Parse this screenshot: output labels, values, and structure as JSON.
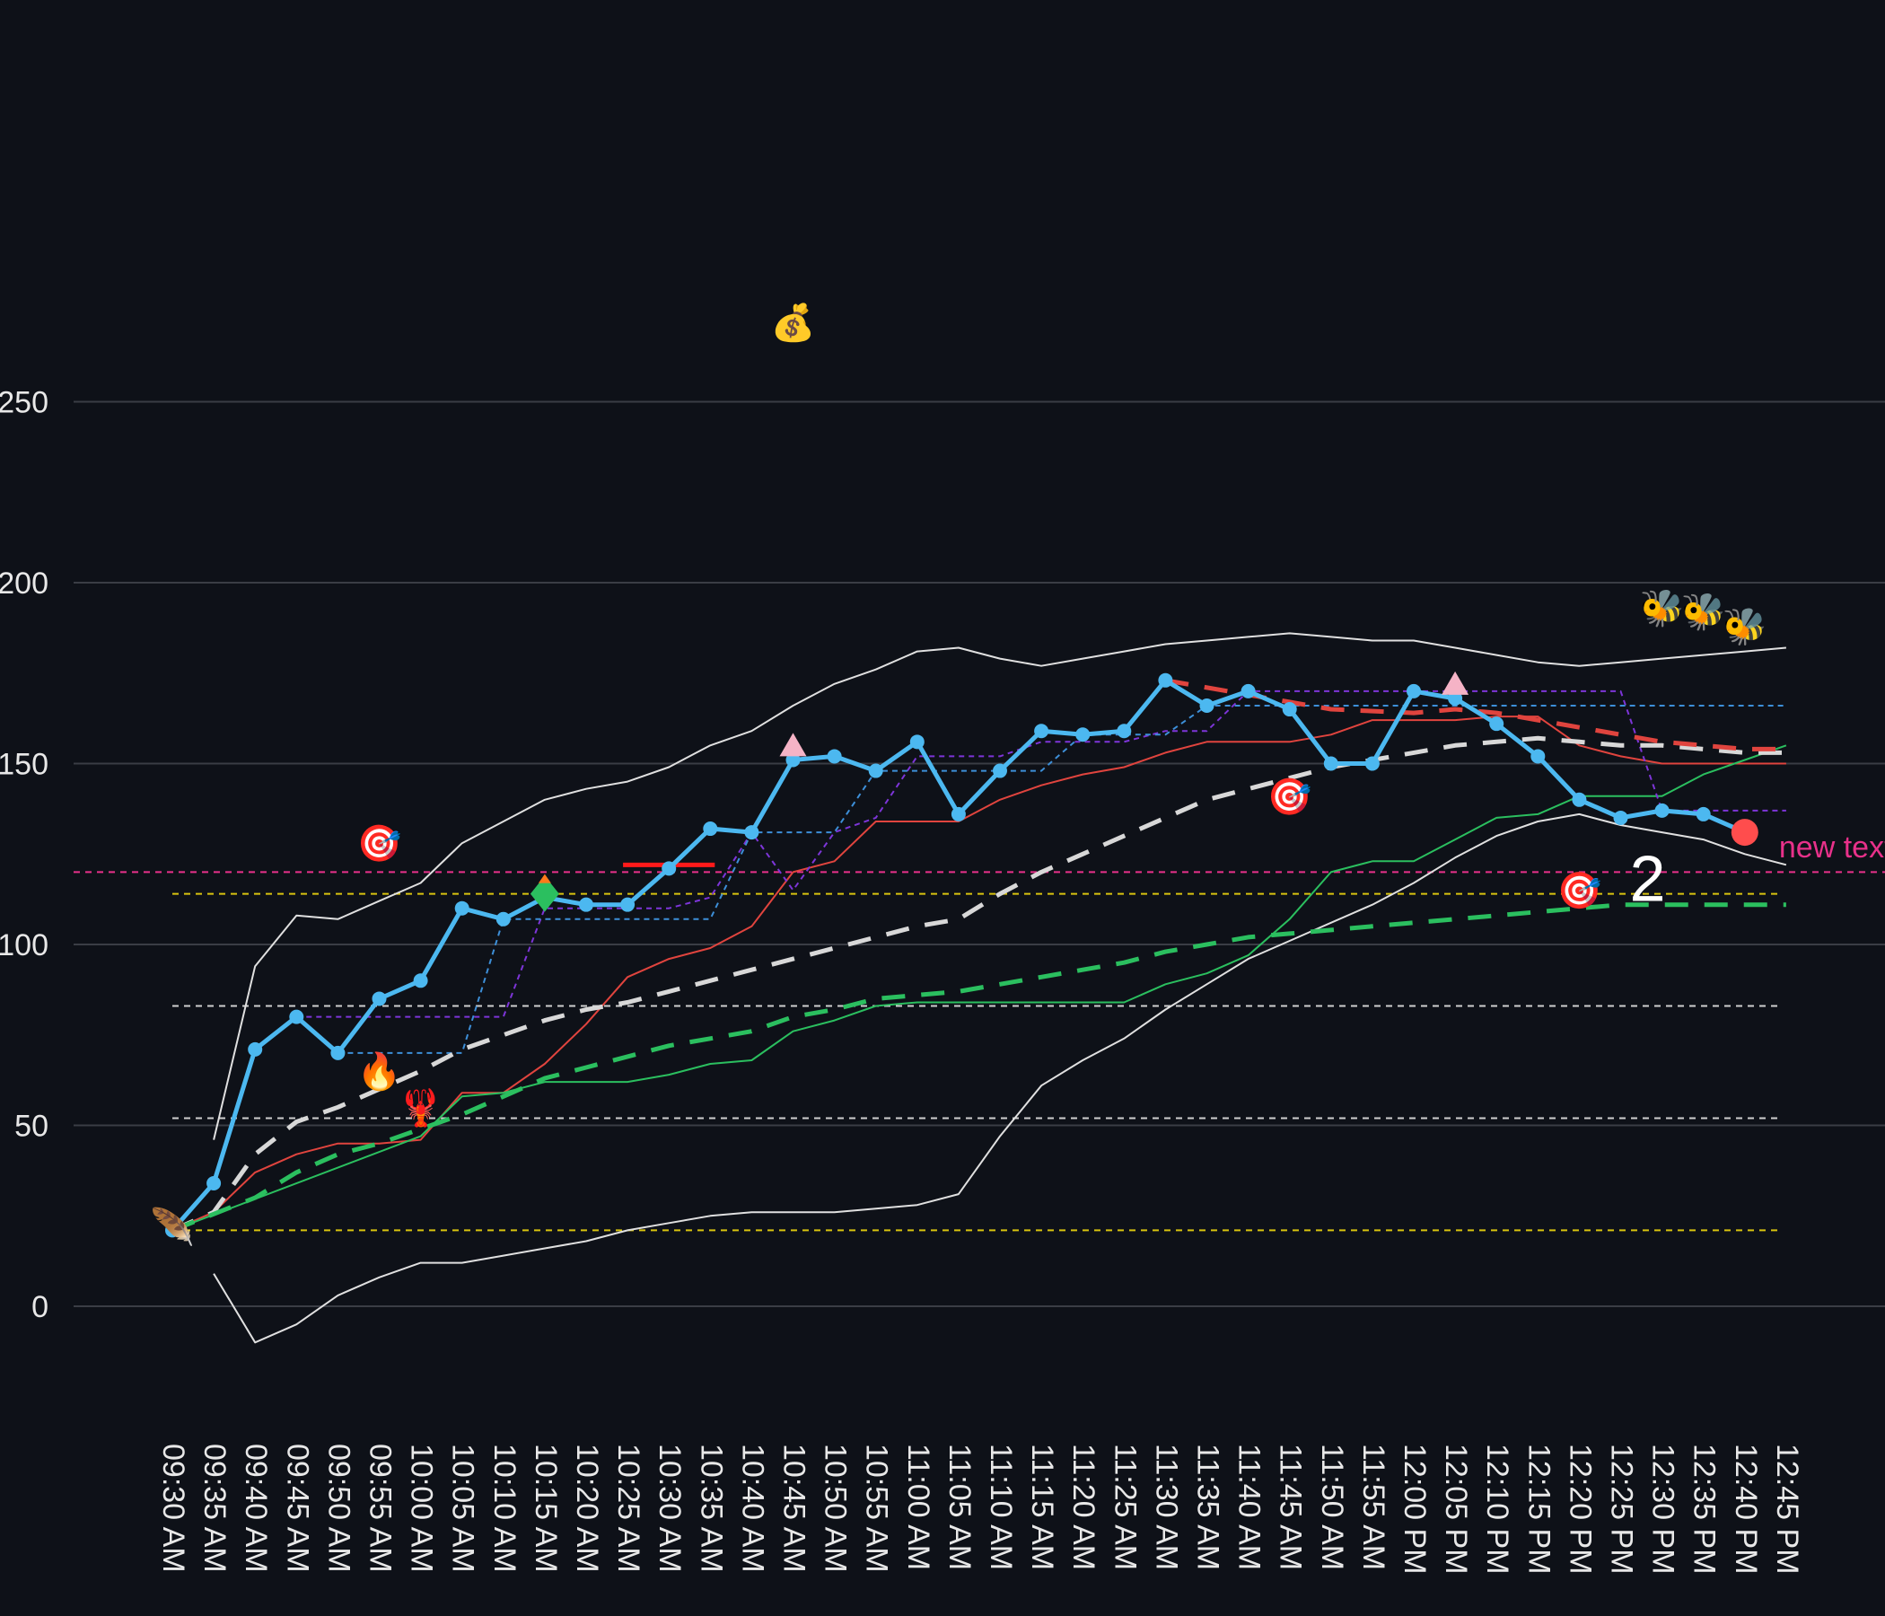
{
  "chart_data": {
    "type": "line",
    "title": "",
    "xlabel": "",
    "ylabel": "",
    "ylim": [
      -35,
      330
    ],
    "grid": true,
    "y_ticks": [
      0,
      50,
      100,
      150,
      200,
      250
    ],
    "categories": [
      "09:30 AM",
      "09:35 AM",
      "09:40 AM",
      "09:45 AM",
      "09:50 AM",
      "09:55 AM",
      "10:00 AM",
      "10:05 AM",
      "10:10 AM",
      "10:15 AM",
      "10:20 AM",
      "10:25 AM",
      "10:30 AM",
      "10:35 AM",
      "10:40 AM",
      "10:45 AM",
      "10:50 AM",
      "10:55 AM",
      "11:00 AM",
      "11:05 AM",
      "11:10 AM",
      "11:15 AM",
      "11:20 AM",
      "11:25 AM",
      "11:30 AM",
      "11:35 AM",
      "11:40 AM",
      "11:45 AM",
      "11:50 AM",
      "11:55 AM",
      "12:00 PM",
      "12:05 PM",
      "12:10 PM",
      "12:15 PM",
      "12:20 PM",
      "12:25 PM",
      "12:30 PM",
      "12:35 PM",
      "12:40 PM",
      "12:45 PM"
    ],
    "series": [
      {
        "key": "price",
        "color": "#4cb8f0",
        "style": "solid-markers",
        "values": [
          21,
          34,
          71,
          80,
          70,
          85,
          90,
          110,
          107,
          113,
          111,
          111,
          121,
          132,
          131,
          151,
          152,
          148,
          156,
          136,
          148,
          159,
          158,
          159,
          173,
          166,
          170,
          165,
          150,
          150,
          170,
          168,
          161,
          152,
          140,
          135,
          137,
          136,
          131,
          null
        ]
      },
      {
        "key": "bb_upper",
        "color": "#e0e0e0",
        "style": "thin",
        "values": [
          null,
          46,
          94,
          108,
          107,
          112,
          117,
          128,
          134,
          140,
          143,
          145,
          149,
          155,
          159,
          166,
          172,
          176,
          181,
          182,
          179,
          177,
          179,
          181,
          183,
          184,
          185,
          186,
          185,
          184,
          184,
          182,
          180,
          178,
          177,
          178,
          179,
          180,
          181,
          182
        ]
      },
      {
        "key": "bb_lower",
        "color": "#e0e0e0",
        "style": "thin",
        "values": [
          null,
          9,
          -10,
          -5,
          3,
          8,
          12,
          12,
          14,
          16,
          18,
          21,
          23,
          25,
          26,
          26,
          26,
          27,
          28,
          31,
          47,
          61,
          68,
          74,
          82,
          89,
          96,
          101,
          106,
          111,
          117,
          124,
          130,
          134,
          136,
          133,
          131,
          129,
          125,
          122
        ]
      },
      {
        "key": "red_thin",
        "color": "#e0443e",
        "style": "thin",
        "values": [
          21,
          26,
          37,
          42,
          45,
          45,
          46,
          59,
          59,
          67,
          78,
          91,
          96,
          99,
          105,
          120,
          123,
          134,
          134,
          134,
          140,
          144,
          147,
          149,
          153,
          156,
          156,
          156,
          158,
          162,
          162,
          162,
          163,
          163,
          155,
          152,
          150,
          150,
          150,
          150
        ]
      },
      {
        "key": "green_thin",
        "color": "#2bbf5f",
        "style": "thin",
        "values": [
          21,
          null,
          null,
          null,
          null,
          null,
          47,
          58,
          59,
          62,
          62,
          62,
          64,
          67,
          68,
          76,
          79,
          83,
          84,
          84,
          84,
          84,
          84,
          84,
          89,
          92,
          97,
          107,
          120,
          123,
          123,
          129,
          135,
          136,
          141,
          141,
          141,
          147,
          151,
          155
        ]
      },
      {
        "key": "purple_step",
        "color": "#7d35d8",
        "style": "dashed-thin",
        "values": [
          null,
          null,
          null,
          80,
          80,
          80,
          80,
          80,
          80,
          110,
          110,
          110,
          110,
          113,
          131,
          115,
          131,
          135,
          152,
          152,
          152,
          156,
          156,
          156,
          159,
          159,
          170,
          170,
          170,
          170,
          170,
          170,
          170,
          170,
          170,
          170,
          137,
          137,
          137,
          137
        ]
      },
      {
        "key": "blue_step",
        "color": "#3d8fd8",
        "style": "dashed-thin",
        "values": [
          null,
          null,
          null,
          null,
          70,
          70,
          70,
          70,
          107,
          107,
          107,
          107,
          107,
          107,
          131,
          131,
          131,
          148,
          148,
          148,
          148,
          148,
          158,
          158,
          158,
          166,
          166,
          166,
          166,
          166,
          166,
          166,
          166,
          166,
          166,
          166,
          166,
          166,
          166,
          166
        ]
      },
      {
        "key": "white_trend",
        "color": "#d8d8d8",
        "style": "dashed-thick",
        "values": [
          21,
          26,
          42,
          51,
          55,
          60,
          65,
          71,
          75,
          79,
          82,
          84,
          87,
          90,
          93,
          96,
          99,
          102,
          105,
          107,
          114,
          120,
          125,
          130,
          135,
          140,
          143,
          146,
          149,
          151,
          153,
          155,
          156,
          157,
          156,
          155,
          155,
          154,
          153,
          153
        ]
      },
      {
        "key": "green_trend",
        "color": "#2bbf5f",
        "style": "dashed-thick",
        "values": [
          21,
          null,
          30,
          37,
          42,
          45,
          49,
          53,
          58,
          63,
          66,
          69,
          72,
          74,
          76,
          80,
          82,
          85,
          86,
          87,
          89,
          91,
          93,
          95,
          98,
          100,
          102,
          103,
          104,
          105,
          106,
          107,
          108,
          109,
          110,
          111,
          111,
          111,
          111,
          111
        ]
      },
      {
        "key": "red_trend",
        "color": "#e0443e",
        "style": "dashed-thick",
        "values": [
          null,
          null,
          null,
          null,
          null,
          null,
          null,
          null,
          null,
          null,
          null,
          null,
          null,
          null,
          null,
          null,
          null,
          null,
          null,
          null,
          null,
          null,
          null,
          null,
          173,
          null,
          169,
          null,
          165,
          null,
          164,
          165,
          164,
          162,
          160,
          158,
          156,
          155,
          154,
          154
        ]
      }
    ],
    "horizontal_lines": [
      {
        "y": 120,
        "color": "#e8318a",
        "full_width": true
      },
      {
        "y": 114,
        "color": "#d9c40f",
        "full_width": false
      },
      {
        "y": 83,
        "color": "#cfcfcf",
        "full_width": false
      },
      {
        "y": 52,
        "color": "#cfcfcf",
        "full_width": false
      },
      {
        "y": 21,
        "color": "#d9c40f",
        "full_width": false
      }
    ],
    "segment": {
      "from_index": 11,
      "to_index": 13,
      "y": 122,
      "color": "#ff1a1a"
    },
    "annotations": [
      {
        "text": "new text",
        "color": "#e8318a",
        "at_index": 39,
        "y": 127
      },
      {
        "text": "2",
        "color": "#ffffff",
        "at_index": 35,
        "y": 117
      }
    ],
    "markers": [
      {
        "shape": "triangle",
        "color": "#f5b3c6",
        "at_index": 15,
        "y": 155
      },
      {
        "shape": "triangle",
        "color": "#f5b3c6",
        "at_index": 31,
        "y": 172
      },
      {
        "shape": "diamond",
        "color": "#2bbf5f",
        "at_index": 9,
        "y": 114
      },
      {
        "shape": "circle",
        "color": "#ff4d4d",
        "at_index": 38,
        "y": 131
      }
    ],
    "emoji_markers": [
      {
        "icon": "money-bag-icon",
        "glyph": "💰",
        "at_index": 15,
        "y": 272
      },
      {
        "icon": "dart-target-icon",
        "glyph": "🎯",
        "at_index": 5,
        "y": 128
      },
      {
        "icon": "dart-target-icon",
        "glyph": "🎯",
        "at_index": 27,
        "y": 141
      },
      {
        "icon": "dart-target-icon",
        "glyph": "🎯",
        "at_index": 34,
        "y": 115
      },
      {
        "icon": "fire-icon",
        "glyph": "🔥",
        "at_index": 5,
        "y": 65
      },
      {
        "icon": "lobster-icon",
        "glyph": "🦞",
        "at_index": 6,
        "y": 55
      },
      {
        "icon": "feather-icon",
        "glyph": "🪶",
        "at_index": 0,
        "y": 22
      },
      {
        "icon": "bee-icon",
        "glyph": "🐝",
        "at_index": 36,
        "y": 193
      },
      {
        "icon": "bee-icon",
        "glyph": "🐝",
        "at_index": 37,
        "y": 192
      },
      {
        "icon": "bee-icon",
        "glyph": "🐝",
        "at_index": 38,
        "y": 188
      }
    ]
  }
}
